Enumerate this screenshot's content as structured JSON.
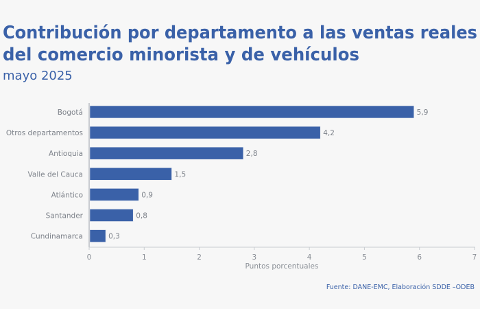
{
  "chart_data": {
    "type": "bar",
    "orientation": "horizontal",
    "title_lines": [
      "Contribución por departamento a las ventas reales",
      "del comercio minorista y de vehículos"
    ],
    "subtitle": "mayo 2025",
    "categories": [
      "Bogotá",
      "Otros departamentos",
      "Antioquia",
      "Valle del Cauca",
      "Atlántico",
      "Santander",
      "Cundinamarca"
    ],
    "values": [
      5.9,
      4.2,
      2.8,
      1.5,
      0.9,
      0.8,
      0.3
    ],
    "data_labels": [
      "5,9",
      "4,2",
      "2,8",
      "1,5",
      "0,9",
      "0,8",
      "0,3"
    ],
    "xlabel": "Puntos porcentuales",
    "xlim": [
      0,
      7
    ],
    "xticks": [
      "0",
      "1",
      "2",
      "3",
      "4",
      "5",
      "6",
      "7"
    ],
    "grid": false,
    "bar_color": "#3a61a8",
    "source": "Fuente: DANE-EMC, Elaboración SDDE –ODEB"
  }
}
